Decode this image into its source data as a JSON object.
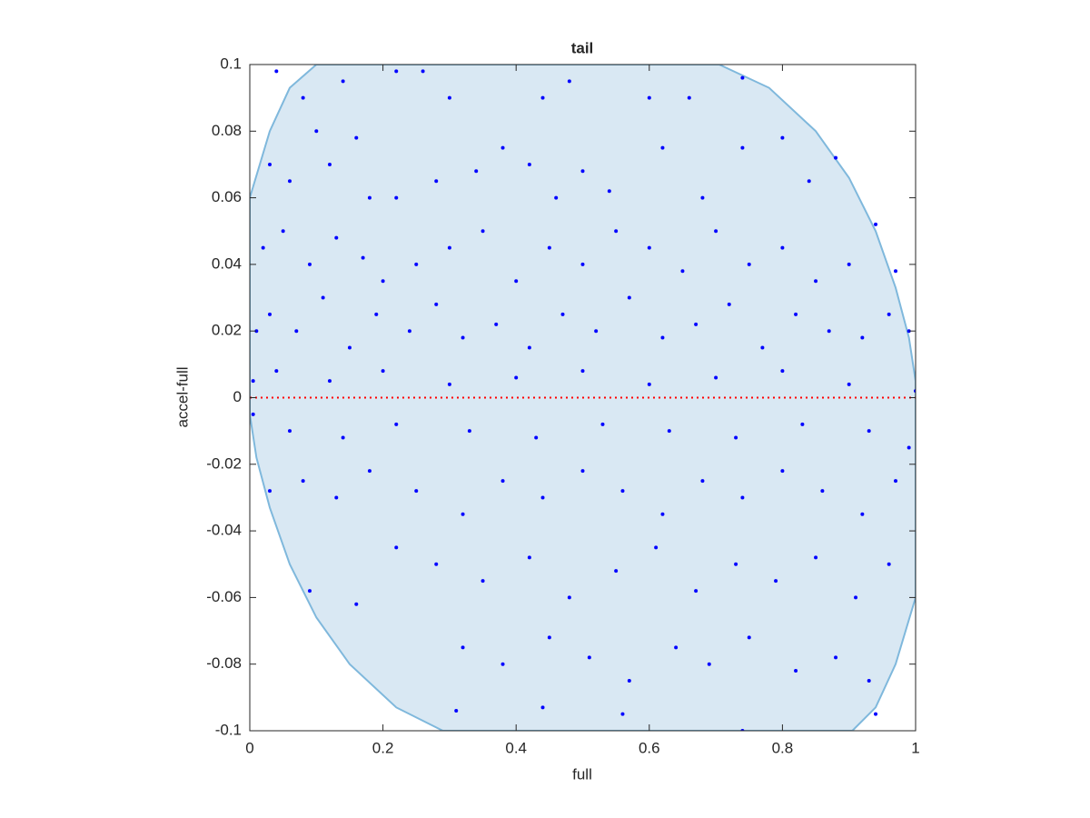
{
  "chart_data": {
    "type": "scatter",
    "title": "tail",
    "xlabel": "full",
    "ylabel": "accel-full",
    "xlim": [
      0,
      1
    ],
    "ylim": [
      -0.1,
      0.1
    ],
    "xticks": [
      0,
      0.2,
      0.4,
      0.6,
      0.8,
      1
    ],
    "yticks": [
      -0.1,
      -0.08,
      -0.06,
      -0.04,
      -0.02,
      0,
      0.02,
      0.04,
      0.06,
      0.08,
      0.1
    ],
    "refline": {
      "y": 0,
      "color": "#ff0000"
    },
    "region": {
      "color": "#d9e8f3",
      "edge_color": "#7fb8dc",
      "x": [
        0,
        0.03,
        0.06,
        0.1,
        0.705,
        0.78,
        0.85,
        0.9,
        0.94,
        0.97,
        0.99,
        1,
        1,
        0.97,
        0.94,
        0.905,
        0.29,
        0.22,
        0.15,
        0.1,
        0.06,
        0.03,
        0.01,
        0
      ],
      "y": [
        0.06,
        0.08,
        0.093,
        0.1,
        0.1,
        0.093,
        0.08,
        0.066,
        0.05,
        0.033,
        0.018,
        0.005,
        -0.06,
        -0.08,
        -0.093,
        -0.1,
        -0.1,
        -0.093,
        -0.08,
        -0.066,
        -0.05,
        -0.033,
        -0.018,
        -0.005
      ]
    },
    "series": [
      {
        "color": "#0000ff",
        "x": [
          0.04,
          0.08,
          0.14,
          0.22,
          0.26,
          0.3,
          0.44,
          0.48,
          0.6,
          0.66,
          0.74,
          0.03,
          0.06,
          0.1,
          0.12,
          0.16,
          0.18,
          0.22,
          0.28,
          0.34,
          0.38,
          0.42,
          0.46,
          0.5,
          0.54,
          0.62,
          0.68,
          0.74,
          0.8,
          0.84,
          0.88,
          0.02,
          0.05,
          0.09,
          0.13,
          0.17,
          0.2,
          0.25,
          0.3,
          0.35,
          0.4,
          0.45,
          0.5,
          0.55,
          0.6,
          0.65,
          0.7,
          0.75,
          0.8,
          0.85,
          0.9,
          0.94,
          0.97,
          0.01,
          0.03,
          0.07,
          0.11,
          0.15,
          0.19,
          0.24,
          0.28,
          0.32,
          0.37,
          0.42,
          0.47,
          0.52,
          0.57,
          0.62,
          0.67,
          0.72,
          0.77,
          0.82,
          0.87,
          0.92,
          0.96,
          0.99,
          0.005,
          0.04,
          0.12,
          0.2,
          0.3,
          0.4,
          0.5,
          0.6,
          0.7,
          0.8,
          0.9,
          1,
          0.005,
          0.06,
          0.14,
          0.22,
          0.33,
          0.43,
          0.53,
          0.63,
          0.73,
          0.83,
          0.93,
          0.99,
          0.03,
          0.08,
          0.13,
          0.18,
          0.25,
          0.32,
          0.38,
          0.44,
          0.5,
          0.56,
          0.62,
          0.68,
          0.74,
          0.8,
          0.86,
          0.92,
          0.97,
          0.09,
          0.16,
          0.22,
          0.28,
          0.35,
          0.42,
          0.48,
          0.55,
          0.61,
          0.67,
          0.73,
          0.79,
          0.85,
          0.91,
          0.96,
          0.32,
          0.38,
          0.45,
          0.51,
          0.57,
          0.64,
          0.69,
          0.75,
          0.82,
          0.88,
          0.93,
          0.31,
          0.44,
          0.56,
          0.74,
          0.94
        ],
        "values": [
          0.098,
          0.09,
          0.095,
          0.098,
          0.098,
          0.09,
          0.09,
          0.095,
          0.09,
          0.09,
          0.096,
          0.07,
          0.065,
          0.08,
          0.07,
          0.078,
          0.06,
          0.06,
          0.065,
          0.068,
          0.075,
          0.07,
          0.06,
          0.068,
          0.062,
          0.075,
          0.06,
          0.075,
          0.078,
          0.065,
          0.072,
          0.045,
          0.05,
          0.04,
          0.048,
          0.042,
          0.035,
          0.04,
          0.045,
          0.05,
          0.035,
          0.045,
          0.04,
          0.05,
          0.045,
          0.038,
          0.05,
          0.04,
          0.045,
          0.035,
          0.04,
          0.052,
          0.038,
          0.02,
          0.025,
          0.02,
          0.03,
          0.015,
          0.025,
          0.02,
          0.028,
          0.018,
          0.022,
          0.015,
          0.025,
          0.02,
          0.03,
          0.018,
          0.022,
          0.028,
          0.015,
          0.025,
          0.02,
          0.018,
          0.025,
          0.02,
          0.005,
          0.008,
          0.005,
          0.008,
          0.004,
          0.006,
          0.008,
          0.004,
          0.006,
          0.008,
          0.004,
          0.002,
          -0.005,
          -0.01,
          -0.012,
          -0.008,
          -0.01,
          -0.012,
          -0.008,
          -0.01,
          -0.012,
          -0.008,
          -0.01,
          -0.015,
          -0.028,
          -0.025,
          -0.03,
          -0.022,
          -0.028,
          -0.035,
          -0.025,
          -0.03,
          -0.022,
          -0.028,
          -0.035,
          -0.025,
          -0.03,
          -0.022,
          -0.028,
          -0.035,
          -0.025,
          -0.058,
          -0.062,
          -0.045,
          -0.05,
          -0.055,
          -0.048,
          -0.06,
          -0.052,
          -0.045,
          -0.058,
          -0.05,
          -0.055,
          -0.048,
          -0.06,
          -0.05,
          -0.075,
          -0.08,
          -0.072,
          -0.078,
          -0.085,
          -0.075,
          -0.08,
          -0.072,
          -0.082,
          -0.078,
          -0.085,
          -0.094,
          -0.093,
          -0.095,
          -0.1,
          -0.095
        ]
      }
    ]
  }
}
